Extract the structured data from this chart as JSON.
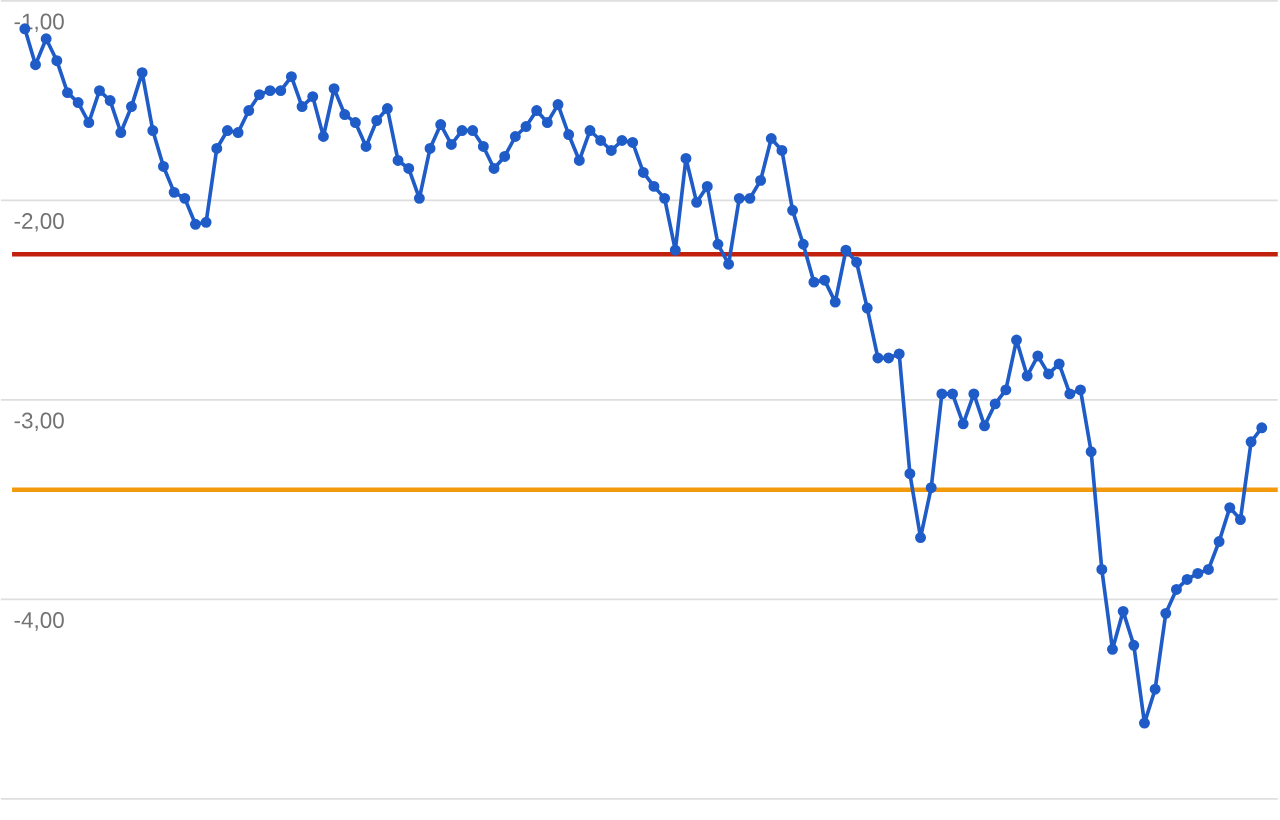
{
  "chart_data": {
    "type": "line",
    "categories": [
      null,
      null,
      null,
      null,
      null,
      null,
      null,
      null,
      null,
      null,
      null,
      null,
      null,
      null,
      null,
      null,
      null,
      null,
      null,
      null,
      null,
      null,
      null,
      null,
      null,
      null,
      null,
      null,
      null,
      null,
      null,
      null,
      null,
      null,
      null,
      null,
      null,
      null,
      null,
      null,
      null,
      null,
      null,
      null,
      null,
      null,
      null,
      null,
      null,
      null,
      null,
      null,
      null,
      null,
      null,
      null,
      null,
      null,
      null,
      null,
      null,
      null,
      null,
      null,
      null,
      null,
      null,
      null,
      null,
      null,
      null,
      null,
      null,
      null,
      null,
      null,
      null,
      null,
      null,
      null,
      null,
      null,
      null,
      null,
      null,
      null,
      null,
      null,
      null,
      null,
      null,
      null,
      null,
      null,
      null,
      null,
      null,
      null,
      null,
      null,
      null,
      null,
      null,
      null,
      null,
      null,
      null,
      null,
      null,
      null,
      null,
      null,
      null,
      null,
      null,
      null,
      null
    ],
    "series": [
      {
        "color": "#1f5cc8",
        "values": [
          -1.14,
          -1.32,
          -1.19,
          -1.3,
          -1.46,
          -1.51,
          -1.61,
          -1.45,
          -1.5,
          -1.66,
          -1.53,
          -1.36,
          -1.65,
          -1.83,
          -1.96,
          -1.99,
          -2.12,
          -2.11,
          -1.74,
          -1.65,
          -1.66,
          -1.55,
          -1.47,
          -1.45,
          -1.45,
          -1.38,
          -1.53,
          -1.48,
          -1.68,
          -1.44,
          -1.57,
          -1.61,
          -1.73,
          -1.6,
          -1.54,
          -1.8,
          -1.84,
          -1.99,
          -1.74,
          -1.62,
          -1.72,
          -1.65,
          -1.65,
          -1.73,
          -1.84,
          -1.78,
          -1.68,
          -1.63,
          -1.55,
          -1.61,
          -1.52,
          -1.67,
          -1.8,
          -1.65,
          -1.7,
          -1.75,
          -1.7,
          -1.71,
          -1.86,
          -1.93,
          -1.99,
          -2.25,
          -1.79,
          -2.01,
          -1.93,
          -2.22,
          -2.32,
          -1.99,
          -1.99,
          -1.9,
          -1.69,
          -1.75,
          -2.05,
          -2.22,
          -2.41,
          -2.4,
          -2.51,
          -2.25,
          -2.31,
          -2.54,
          -2.79,
          -2.79,
          -2.77,
          -3.37,
          -3.69,
          -3.44,
          -2.97,
          -2.97,
          -3.12,
          -2.97,
          -3.13,
          -3.02,
          -2.95,
          -2.7,
          -2.88,
          -2.78,
          -2.87,
          -2.82,
          -2.97,
          -2.95,
          -3.26,
          -3.85,
          -4.25,
          -4.06,
          -4.23,
          -4.62,
          -4.45,
          -4.07,
          -3.95,
          -3.9,
          -3.87,
          -3.85,
          -3.71,
          -3.54,
          -3.6,
          -3.21,
          -3.14
        ]
      }
    ],
    "ylim": [
      -5,
      -1
    ],
    "yticks": [
      {
        "value": -1,
        "label": "-1,00"
      },
      {
        "value": -2,
        "label": "-2,00"
      },
      {
        "value": -3,
        "label": "-3,00"
      },
      {
        "value": -4,
        "label": "-4,00"
      },
      {
        "value": -5,
        "label": null
      }
    ],
    "ref_lines": [
      {
        "axis": "y",
        "value": -2.27,
        "color": "#c0200c"
      },
      {
        "axis": "y",
        "value": -3.45,
        "color": "#f39a0c"
      }
    ],
    "grid": "y",
    "tick_labels": "y",
    "marker": "circle",
    "line_style": "solid"
  }
}
